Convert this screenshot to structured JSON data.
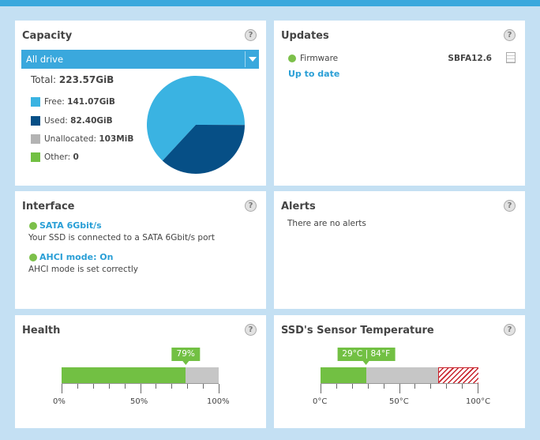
{
  "colors": {
    "accent": "#3aa8dd",
    "free": "#3ab3e2",
    "used": "#064f86",
    "unallocated": "#b3b3b3",
    "other": "#72c043",
    "good": "#72c043"
  },
  "capacity": {
    "title": "Capacity",
    "help": "?",
    "dropdown_value": "All drive",
    "total_label": "Total:",
    "total_value": "223.57GiB",
    "legend": [
      {
        "label": "Free:",
        "value": "141.07GiB",
        "gib": 141.07
      },
      {
        "label": "Used:",
        "value": "82.40GiB",
        "gib": 82.4
      },
      {
        "label": "Unallocated:",
        "value": "103MiB",
        "gib": 0.1
      },
      {
        "label": "Other:",
        "value": "0",
        "gib": 0
      }
    ]
  },
  "updates": {
    "title": "Updates",
    "help": "?",
    "firmware_label": "Firmware",
    "firmware_version": "SBFA12.6",
    "status_link": "Up to date"
  },
  "interface": {
    "title": "Interface",
    "help": "?",
    "items": [
      {
        "heading": "SATA 6Gbit/s",
        "desc": "Your SSD is connected to a SATA 6Gbit/s port"
      },
      {
        "heading": "AHCI mode: On",
        "desc": "AHCI mode is set correctly"
      }
    ]
  },
  "alerts": {
    "title": "Alerts",
    "help": "?",
    "message": "There are no alerts"
  },
  "health": {
    "title": "Health",
    "help": "?",
    "value": 79,
    "value_label": "79%",
    "axis": [
      "0%",
      "50%",
      "100%"
    ]
  },
  "temperature": {
    "title": "SSD's Sensor Temperature",
    "help": "?",
    "value_c": 29,
    "value_label": "29°C | 84°F",
    "normal_max_c": 75,
    "axis": [
      "0°C",
      "50°C",
      "100°C"
    ]
  }
}
